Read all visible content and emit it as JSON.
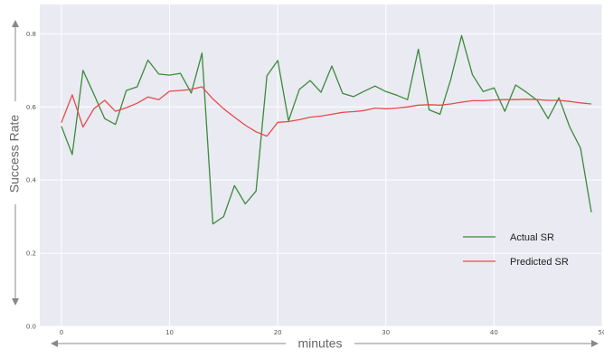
{
  "chart_data": {
    "type": "line",
    "xlabel": "minutes",
    "ylabel": "Success Rate",
    "xlim": [
      -2,
      50
    ],
    "ylim": [
      0.0,
      0.88
    ],
    "x_ticks": [
      0,
      10,
      20,
      30,
      40,
      50
    ],
    "y_ticks": [
      0.0,
      0.2,
      0.4,
      0.6,
      0.8
    ],
    "y_tick_labels": [
      "0.0",
      "0.2",
      "0.4",
      "0.6",
      "0.8"
    ],
    "grid": true,
    "legend_position": "lower-right",
    "x": [
      0,
      1,
      2,
      3,
      4,
      5,
      6,
      7,
      8,
      9,
      10,
      11,
      12,
      13,
      14,
      15,
      16,
      17,
      18,
      19,
      20,
      21,
      22,
      23,
      24,
      25,
      26,
      27,
      28,
      29,
      30,
      31,
      32,
      33,
      34,
      35,
      36,
      37,
      38,
      39,
      40,
      41,
      42,
      43,
      44,
      45,
      46,
      47,
      48,
      49
    ],
    "series": [
      {
        "name": "Actual SR",
        "color": "#3b8a3b",
        "values": [
          0.547,
          0.47,
          0.7,
          0.635,
          0.568,
          0.552,
          0.645,
          0.655,
          0.728,
          0.69,
          0.687,
          0.692,
          0.638,
          0.747,
          0.28,
          0.3,
          0.385,
          0.335,
          0.37,
          0.685,
          0.727,
          0.562,
          0.648,
          0.672,
          0.64,
          0.712,
          0.637,
          0.628,
          0.643,
          0.657,
          0.642,
          0.632,
          0.62,
          0.758,
          0.592,
          0.58,
          0.675,
          0.795,
          0.688,
          0.642,
          0.652,
          0.588,
          0.66,
          0.64,
          0.618,
          0.568,
          0.625,
          0.545,
          0.487,
          0.312
        ]
      },
      {
        "name": "Predicted SR",
        "color": "#e84a4a",
        "values": [
          0.557,
          0.633,
          0.545,
          0.595,
          0.618,
          0.588,
          0.598,
          0.61,
          0.627,
          0.62,
          0.643,
          0.645,
          0.648,
          0.655,
          0.622,
          0.595,
          0.572,
          0.55,
          0.532,
          0.52,
          0.558,
          0.56,
          0.565,
          0.572,
          0.575,
          0.58,
          0.585,
          0.587,
          0.59,
          0.597,
          0.595,
          0.597,
          0.6,
          0.605,
          0.606,
          0.605,
          0.608,
          0.613,
          0.617,
          0.617,
          0.619,
          0.62,
          0.62,
          0.621,
          0.62,
          0.618,
          0.618,
          0.615,
          0.611,
          0.608
        ]
      }
    ]
  }
}
